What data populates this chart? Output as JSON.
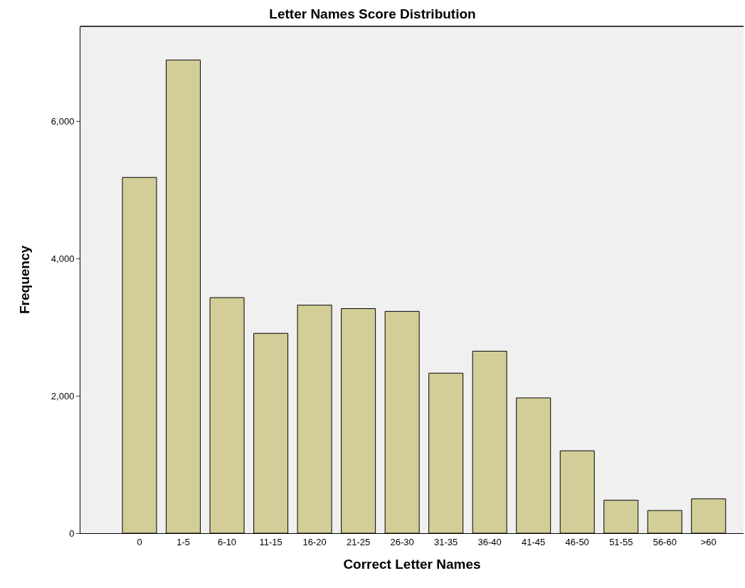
{
  "chart_data": {
    "type": "bar",
    "title": "Letter Names Score Distribution",
    "xlabel": "Correct Letter Names",
    "ylabel": "Frequency",
    "categories": [
      "0",
      "1-5",
      "6-10",
      "11-15",
      "16-20",
      "21-25",
      "26-30",
      "31-35",
      "36-40",
      "41-45",
      "46-50",
      "51-55",
      "56-60",
      ">60"
    ],
    "values": [
      5180,
      6890,
      3430,
      2910,
      3320,
      3270,
      3230,
      2330,
      2650,
      1970,
      1200,
      480,
      330,
      500
    ],
    "color": "#d3ce97",
    "ylim": [
      0,
      7380
    ],
    "yticks": [
      0,
      {
        "value": 2000,
        "label": "2,000"
      },
      {
        "value": 4000,
        "label": "4,000"
      },
      {
        "value": 6000,
        "label": "6,000"
      }
    ],
    "grid": false,
    "legend": false
  }
}
